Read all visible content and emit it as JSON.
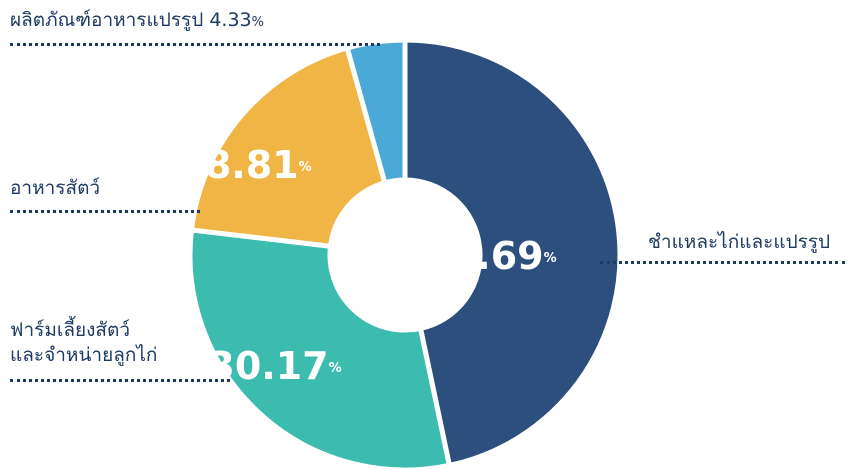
{
  "chart_data": {
    "type": "donut",
    "categories": [
      "ชำแหละไก่และแปรรูป",
      "ฟาร์มเลี้ยงสัตว์\nและจำหน่ายลูกไก่",
      "อาหารสัตว์",
      "ผลิตภัณฑ์อาหารแปรรูป"
    ],
    "values": [
      46.69,
      30.17,
      18.81,
      4.33
    ],
    "unit": "%",
    "colors": [
      "#2c4f7e",
      "#3cbcae",
      "#f0b545",
      "#4aa9d6"
    ]
  }
}
